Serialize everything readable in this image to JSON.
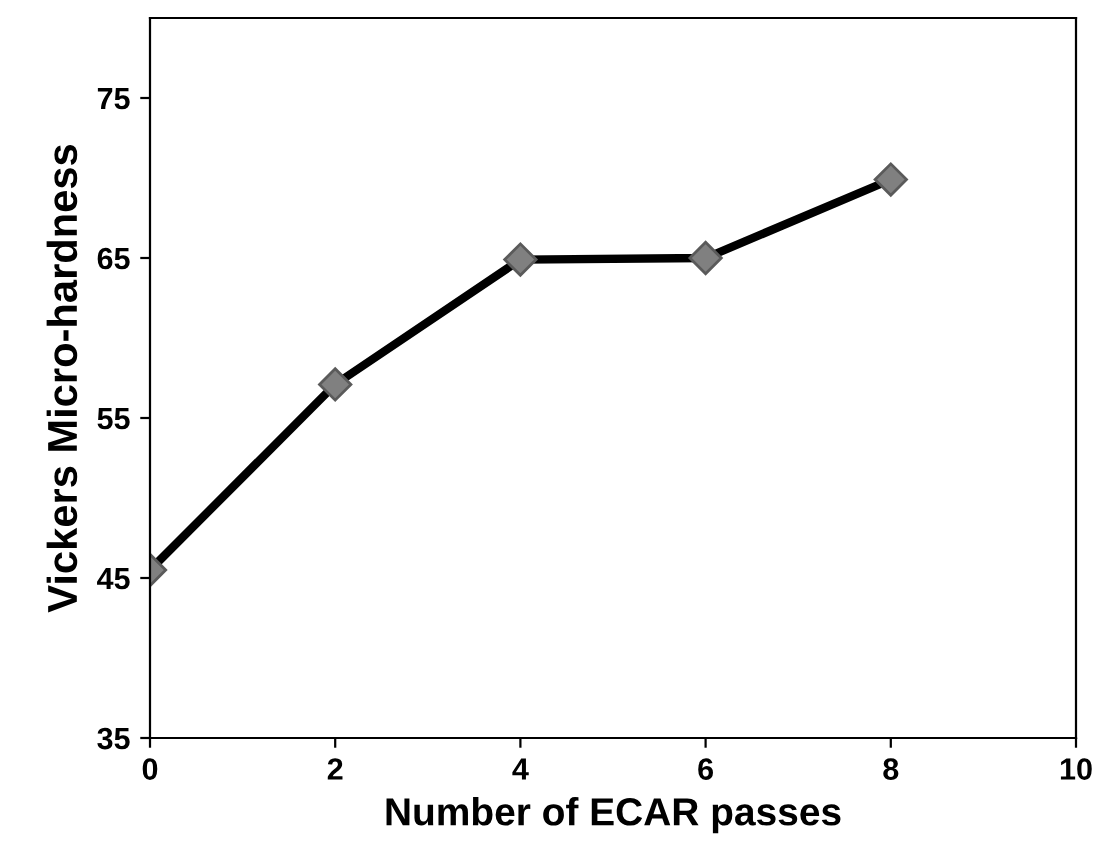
{
  "chart_data": {
    "type": "line",
    "xlabel": "Number of ECAR passes",
    "ylabel": "Vickers Micro-hardness",
    "x": [
      0,
      2,
      4,
      6,
      8
    ],
    "series": [
      {
        "color": "#000000",
        "values": [
          45.5,
          57.1,
          64.9,
          65.0,
          69.9
        ]
      }
    ],
    "marker": "diamond",
    "line_style": "solid",
    "xlim": [
      0,
      10
    ],
    "xticks": [
      0,
      2,
      4,
      6,
      8,
      10
    ],
    "ylim": [
      35,
      80
    ],
    "yticks": [
      35,
      45,
      55,
      65,
      75
    ],
    "grid": false,
    "legend": false
  }
}
